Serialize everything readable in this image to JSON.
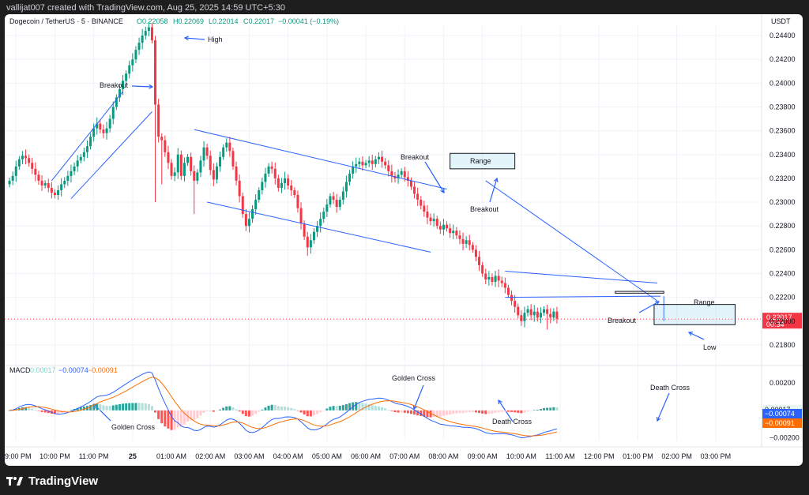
{
  "header": {
    "creator": "vallijat007 created with TradingView.com, Aug 25, 2025 14:59 UTC+5:30"
  },
  "brand": {
    "logo_icon": "tradingview-logo-icon",
    "name": "TradingView"
  },
  "chart_data": {
    "type": "candlestick",
    "title": "Dogecoin / TetherUS · 5 · BINANCE",
    "ohlc_readout": {
      "o": "O0.22058",
      "h": "H0.22069",
      "l": "L0.22014",
      "c": "C0.22017",
      "chg": "−0.00041 (−0.19%)"
    },
    "currency_label": "USDT",
    "ylim": [
      0.2166,
      0.2448
    ],
    "yticks": [
      "0.24400",
      "0.24200",
      "0.24000",
      "0.23800",
      "0.23600",
      "0.23400",
      "0.23200",
      "0.23000",
      "0.22800",
      "0.22600",
      "0.22400",
      "0.22200",
      "0.22000",
      "0.21800"
    ],
    "last_price": {
      "value": "0.22017",
      "countdown": "00:34",
      "color": "#f23645"
    },
    "colors": {
      "up": "#089981",
      "down": "#f23645",
      "annotation": "#2962ff",
      "macd": "#2962ff",
      "signal": "#ff6d00"
    },
    "time_labels": [
      {
        "label": "09:00 PM",
        "bar": 2
      },
      {
        "label": "10:00 PM",
        "bar": 14
      },
      {
        "label": "11:00 PM",
        "bar": 26
      },
      {
        "label": "25",
        "bar": 38
      },
      {
        "label": "01:00 AM",
        "bar": 50
      },
      {
        "label": "02:00 AM",
        "bar": 62
      },
      {
        "label": "03:00 AM",
        "bar": 74
      },
      {
        "label": "04:00 AM",
        "bar": 86
      },
      {
        "label": "05:00 AM",
        "bar": 98
      },
      {
        "label": "06:00 AM",
        "bar": 110
      },
      {
        "label": "07:00 AM",
        "bar": 122
      },
      {
        "label": "08:00 AM",
        "bar": 134
      },
      {
        "label": "09:00 AM",
        "bar": 146
      },
      {
        "label": "10:00 AM",
        "bar": 158
      },
      {
        "label": "11:00 AM",
        "bar": 170
      },
      {
        "label": "12:00 PM",
        "bar": 182
      },
      {
        "label": "01:00 PM",
        "bar": 194
      },
      {
        "label": "02:00 PM",
        "bar": 206
      },
      {
        "label": "03:00 PM",
        "bar": 218
      }
    ],
    "closes": [
      0.2318,
      0.2322,
      0.233,
      0.2336,
      0.2339,
      0.2337,
      0.2333,
      0.2328,
      0.2323,
      0.2318,
      0.2314,
      0.2316,
      0.2312,
      0.2308,
      0.2306,
      0.231,
      0.2315,
      0.2318,
      0.2322,
      0.2326,
      0.233,
      0.2335,
      0.2338,
      0.2342,
      0.2347,
      0.2355,
      0.2362,
      0.2366,
      0.2361,
      0.2358,
      0.2362,
      0.237,
      0.238,
      0.2388,
      0.2395,
      0.2402,
      0.2408,
      0.2415,
      0.242,
      0.2428,
      0.2434,
      0.244,
      0.2444,
      0.2447,
      0.2436,
      0.2382,
      0.2355,
      0.2352,
      0.2342,
      0.2333,
      0.2322,
      0.2325,
      0.234,
      0.2322,
      0.2333,
      0.2338,
      0.2326,
      0.2318,
      0.2325,
      0.2335,
      0.2346,
      0.2339,
      0.2327,
      0.2319,
      0.233,
      0.2338,
      0.2346,
      0.235,
      0.2343,
      0.233,
      0.2318,
      0.2305,
      0.229,
      0.228,
      0.2286,
      0.2294,
      0.2302,
      0.231,
      0.2317,
      0.2324,
      0.233,
      0.2328,
      0.232,
      0.2312,
      0.2316,
      0.232,
      0.2314,
      0.231,
      0.2306,
      0.2295,
      0.2282,
      0.2271,
      0.2262,
      0.2268,
      0.2275,
      0.228,
      0.2286,
      0.2292,
      0.2298,
      0.2305,
      0.2302,
      0.2296,
      0.2302,
      0.2309,
      0.2317,
      0.2324,
      0.233,
      0.2332,
      0.2334,
      0.2331,
      0.2333,
      0.2335,
      0.2332,
      0.2336,
      0.2338,
      0.2334,
      0.2331,
      0.2326,
      0.2322,
      0.232,
      0.2323,
      0.2326,
      0.2321,
      0.2318,
      0.2313,
      0.2307,
      0.2302,
      0.2297,
      0.2292,
      0.2287,
      0.2284,
      0.2286,
      0.228,
      0.2277,
      0.2281,
      0.2278,
      0.2274,
      0.2276,
      0.2272,
      0.2269,
      0.2265,
      0.2268,
      0.2264,
      0.226,
      0.2254,
      0.2247,
      0.224,
      0.2235,
      0.2237,
      0.2233,
      0.2238,
      0.2234,
      0.2232,
      0.2228,
      0.2222,
      0.2217,
      0.2212,
      0.2205,
      0.22,
      0.2207,
      0.221,
      0.2205,
      0.2208,
      0.2203,
      0.2207,
      0.221,
      0.2206,
      0.2203,
      0.2208,
      0.2202
    ],
    "annotations": {
      "high": "High",
      "low": "Low",
      "breakout": "Breakout",
      "range": "Range",
      "golden_cross": "Golden Cross",
      "death_cross": "Death Cross"
    },
    "macd": {
      "legend_name": "MACD",
      "hist_value": "0.00017",
      "macd_value": "−0.00074",
      "signal_value": "−0.00091",
      "ylim": [
        -0.0022,
        0.0031
      ],
      "yticks": [
        "0.00200",
        "−0.00200"
      ],
      "macd_tag": "−0.00074",
      "signal_tag": "−0.00091",
      "hist_tag": "0.00017"
    }
  }
}
